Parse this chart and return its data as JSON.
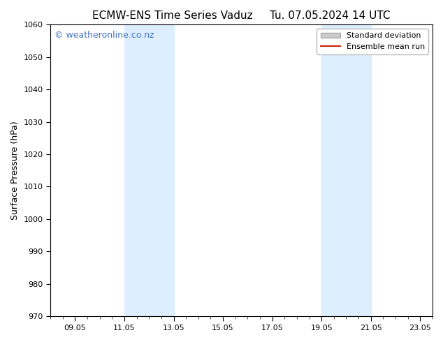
{
  "title": "ECMW-ENS Time Series Vaduz",
  "title_right": "Tu. 07.05.2024 14 UTC",
  "ylabel": "Surface Pressure (hPa)",
  "ylim": [
    970,
    1060
  ],
  "yticks": [
    970,
    980,
    990,
    1000,
    1010,
    1020,
    1030,
    1040,
    1050,
    1060
  ],
  "xlim": [
    8.0,
    23.5
  ],
  "xtick_labels": [
    "09.05",
    "11.05",
    "13.05",
    "15.05",
    "17.05",
    "19.05",
    "21.05",
    "23.05"
  ],
  "xtick_positions": [
    9,
    11,
    13,
    15,
    17,
    19,
    21,
    23
  ],
  "shade_bands": [
    {
      "x_start": 11.0,
      "x_end": 13.0
    },
    {
      "x_start": 19.0,
      "x_end": 21.0
    }
  ],
  "shade_color": "#ddeeff",
  "watermark_text": "© weatheronline.co.nz",
  "watermark_color": "#4472c4",
  "legend_std_color": "#cccccc",
  "legend_std_edge": "#aaaaaa",
  "legend_mean_color": "#cc2200",
  "background_color": "#ffffff",
  "plot_bg_color": "#ffffff",
  "spine_color": "#000000",
  "title_fontsize": 11,
  "axis_label_fontsize": 9,
  "tick_fontsize": 8,
  "watermark_fontsize": 9,
  "legend_fontsize": 8
}
